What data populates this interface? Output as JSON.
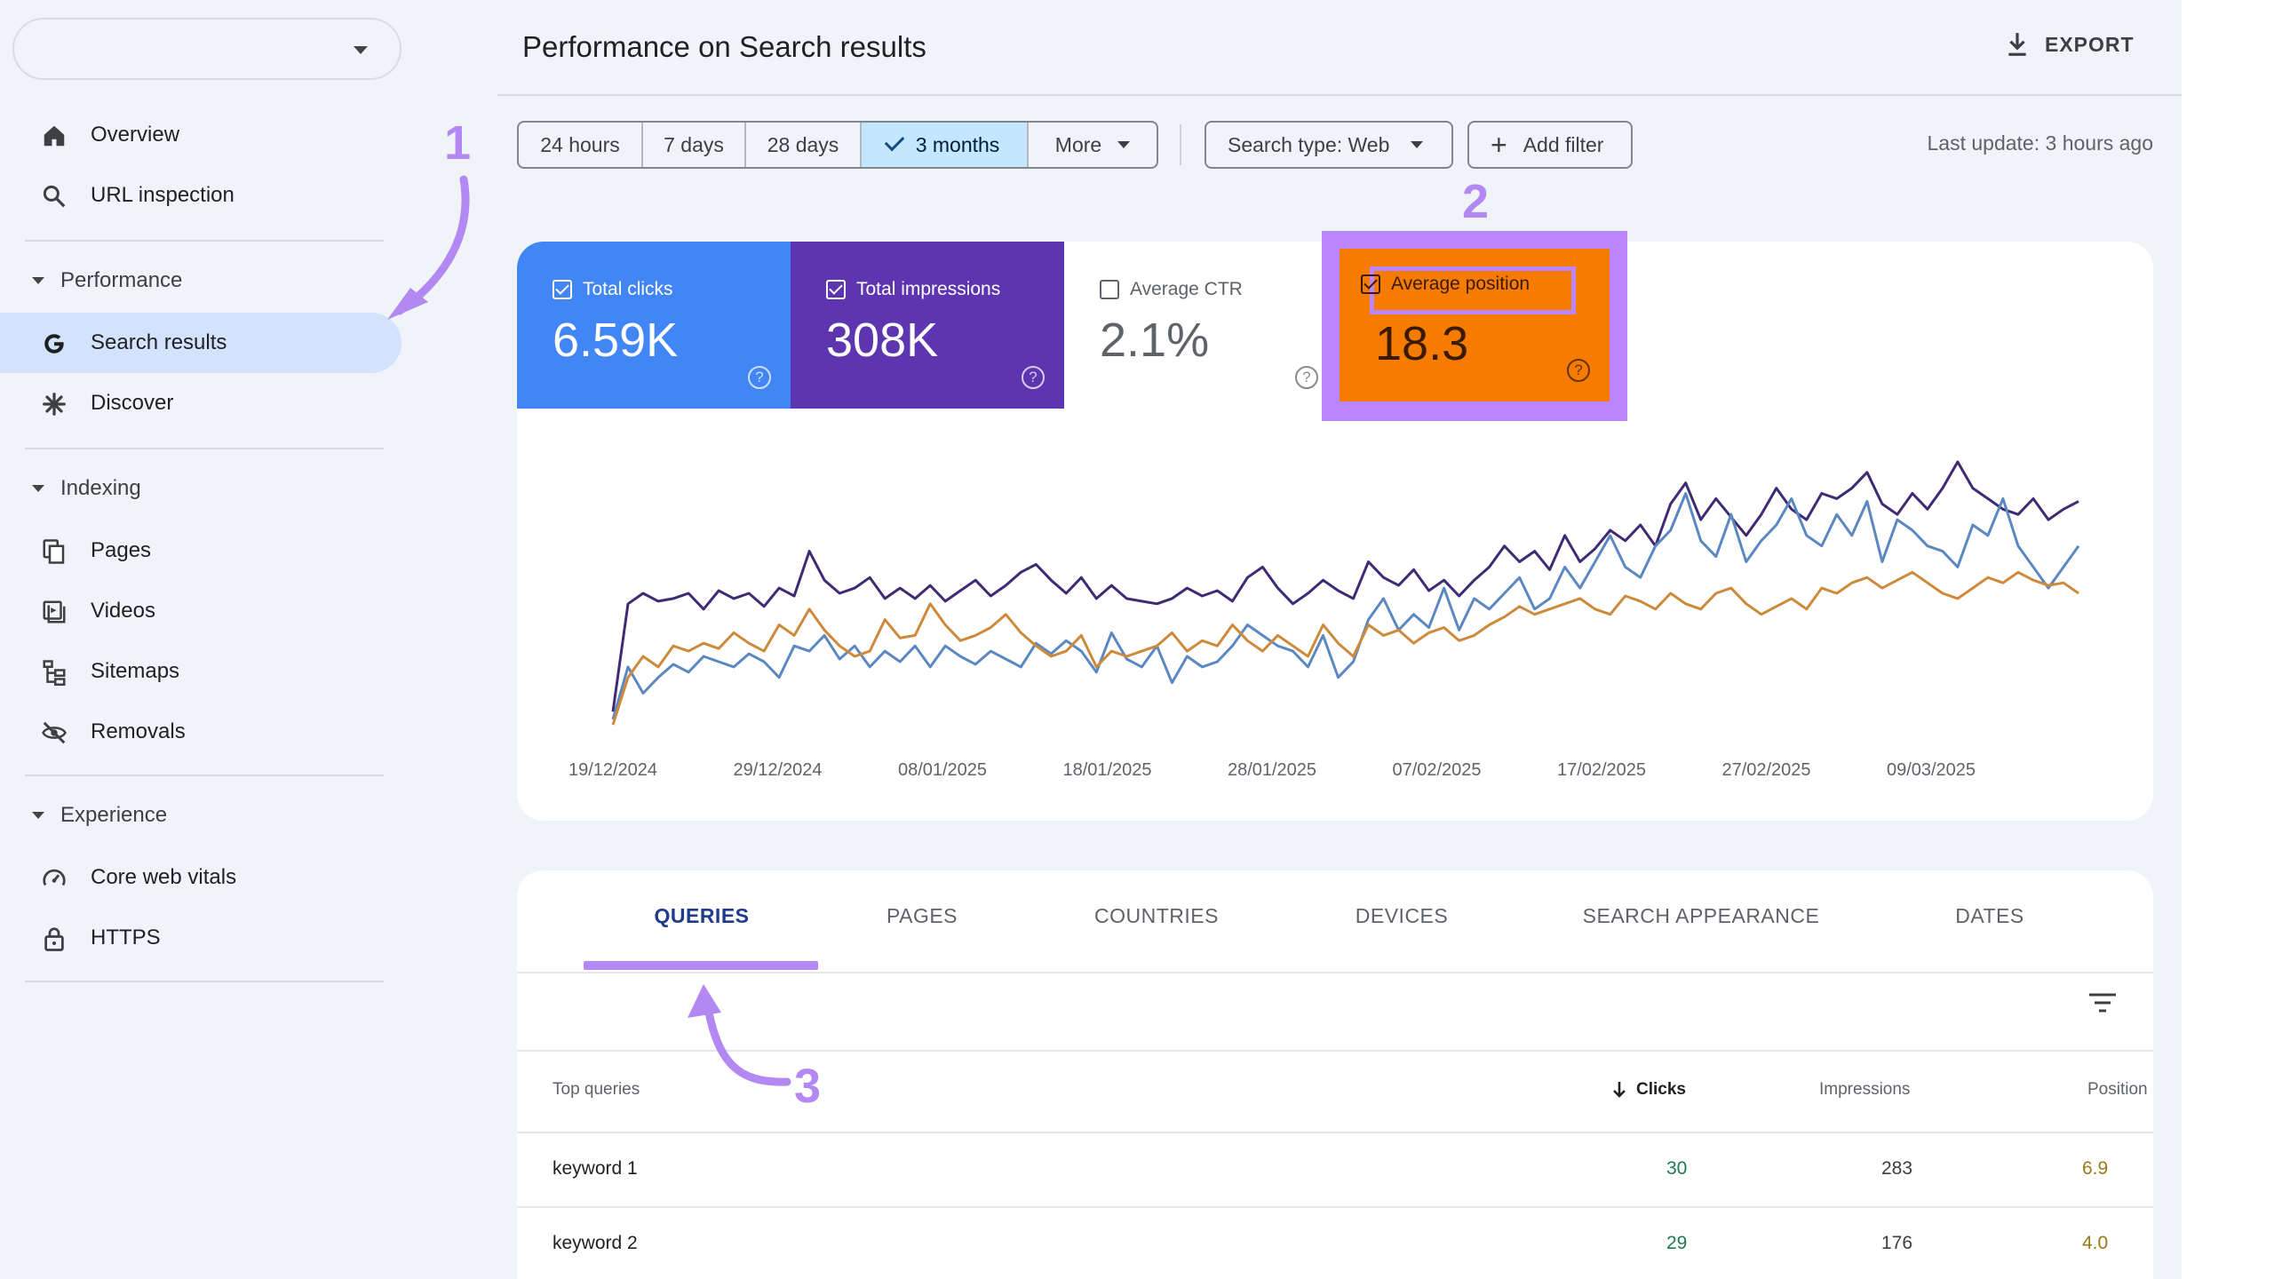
{
  "sidebar": {
    "items": [
      {
        "label": "Overview",
        "icon": "home-icon"
      },
      {
        "label": "URL inspection",
        "icon": "search-icon"
      },
      {
        "label": "Search results",
        "icon": "google-g-icon"
      },
      {
        "label": "Discover",
        "icon": "asterisk-icon"
      },
      {
        "label": "Pages",
        "icon": "pages-icon"
      },
      {
        "label": "Videos",
        "icon": "video-icon"
      },
      {
        "label": "Sitemaps",
        "icon": "sitemap-icon"
      },
      {
        "label": "Removals",
        "icon": "eye-off-icon"
      },
      {
        "label": "Core web vitals",
        "icon": "gauge-icon"
      },
      {
        "label": "HTTPS",
        "icon": "lock-icon"
      }
    ],
    "sections": {
      "performance": "Performance",
      "indexing": "Indexing",
      "experience": "Experience"
    },
    "active_item": "Search results"
  },
  "header": {
    "title": "Performance on Search results",
    "export_label": "EXPORT"
  },
  "filters": {
    "date_ranges": [
      "24 hours",
      "7 days",
      "28 days",
      "3 months",
      "More"
    ],
    "selected_range": "3 months",
    "search_type": "Search type: Web",
    "add_filter": "Add filter",
    "last_update": "Last update: 3 hours ago"
  },
  "metrics": {
    "clicks": {
      "label": "Total clicks",
      "value": "6.59K",
      "checked": true,
      "color": "#4285f4"
    },
    "impressions": {
      "label": "Total impressions",
      "value": "308K",
      "checked": true,
      "color": "#5e35b1"
    },
    "ctr": {
      "label": "Average CTR",
      "value": "2.1%",
      "checked": false
    },
    "position": {
      "label": "Average position",
      "value": "18.3",
      "checked": true,
      "color": "#f57c00"
    }
  },
  "annotations": [
    "1",
    "2",
    "3"
  ],
  "annotation_color": "#b388f2",
  "chart_data": {
    "type": "line",
    "x_tick_labels": [
      "19/12/2024",
      "29/12/2024",
      "08/01/2025",
      "18/01/2025",
      "28/01/2025",
      "07/02/2025",
      "17/02/2025",
      "27/02/2025",
      "09/03/2025"
    ],
    "series": [
      {
        "name": "Total impressions",
        "color": "#3f2a73",
        "values": [
          0.05,
          0.46,
          0.5,
          0.47,
          0.48,
          0.5,
          0.44,
          0.51,
          0.48,
          0.5,
          0.45,
          0.52,
          0.49,
          0.66,
          0.55,
          0.5,
          0.52,
          0.56,
          0.48,
          0.52,
          0.48,
          0.53,
          0.47,
          0.51,
          0.55,
          0.49,
          0.53,
          0.58,
          0.61,
          0.55,
          0.5,
          0.56,
          0.48,
          0.53,
          0.48,
          0.47,
          0.46,
          0.48,
          0.52,
          0.49,
          0.51,
          0.47,
          0.56,
          0.6,
          0.52,
          0.46,
          0.5,
          0.55,
          0.51,
          0.48,
          0.62,
          0.56,
          0.53,
          0.59,
          0.51,
          0.55,
          0.49,
          0.55,
          0.6,
          0.68,
          0.62,
          0.66,
          0.59,
          0.72,
          0.62,
          0.67,
          0.74,
          0.7,
          0.76,
          0.68,
          0.84,
          0.92,
          0.78,
          0.86,
          0.79,
          0.72,
          0.8,
          0.9,
          0.82,
          0.78,
          0.88,
          0.86,
          0.9,
          0.96,
          0.84,
          0.8,
          0.88,
          0.82,
          0.9,
          1.0,
          0.9,
          0.86,
          0.82,
          0.8,
          0.86,
          0.78,
          0.82,
          0.85
        ]
      },
      {
        "name": "Total clicks",
        "color": "#5c88c2",
        "values": [
          0.02,
          0.22,
          0.12,
          0.18,
          0.23,
          0.2,
          0.26,
          0.24,
          0.22,
          0.27,
          0.24,
          0.18,
          0.3,
          0.28,
          0.34,
          0.25,
          0.3,
          0.22,
          0.28,
          0.24,
          0.3,
          0.22,
          0.3,
          0.26,
          0.23,
          0.28,
          0.25,
          0.22,
          0.31,
          0.27,
          0.32,
          0.28,
          0.2,
          0.35,
          0.25,
          0.22,
          0.3,
          0.16,
          0.26,
          0.22,
          0.24,
          0.3,
          0.38,
          0.34,
          0.3,
          0.28,
          0.22,
          0.34,
          0.18,
          0.24,
          0.4,
          0.48,
          0.36,
          0.42,
          0.37,
          0.52,
          0.36,
          0.48,
          0.44,
          0.5,
          0.56,
          0.44,
          0.48,
          0.6,
          0.52,
          0.62,
          0.72,
          0.6,
          0.56,
          0.68,
          0.74,
          0.88,
          0.7,
          0.64,
          0.8,
          0.62,
          0.7,
          0.76,
          0.86,
          0.72,
          0.68,
          0.8,
          0.72,
          0.85,
          0.62,
          0.78,
          0.74,
          0.68,
          0.66,
          0.6,
          0.76,
          0.72,
          0.86,
          0.68,
          0.6,
          0.52,
          0.6,
          0.68
        ]
      },
      {
        "name": "Average position",
        "color": "#cc8a3a",
        "values": [
          0.0,
          0.18,
          0.26,
          0.22,
          0.3,
          0.28,
          0.31,
          0.29,
          0.35,
          0.31,
          0.28,
          0.38,
          0.34,
          0.44,
          0.36,
          0.3,
          0.26,
          0.28,
          0.4,
          0.33,
          0.34,
          0.46,
          0.38,
          0.32,
          0.34,
          0.37,
          0.42,
          0.35,
          0.3,
          0.26,
          0.28,
          0.34,
          0.22,
          0.28,
          0.26,
          0.28,
          0.3,
          0.35,
          0.28,
          0.32,
          0.3,
          0.38,
          0.32,
          0.28,
          0.34,
          0.3,
          0.26,
          0.38,
          0.31,
          0.26,
          0.38,
          0.34,
          0.36,
          0.31,
          0.35,
          0.37,
          0.32,
          0.34,
          0.38,
          0.41,
          0.45,
          0.42,
          0.44,
          0.46,
          0.48,
          0.44,
          0.42,
          0.49,
          0.47,
          0.44,
          0.5,
          0.46,
          0.44,
          0.5,
          0.52,
          0.46,
          0.42,
          0.45,
          0.48,
          0.44,
          0.52,
          0.5,
          0.54,
          0.56,
          0.52,
          0.55,
          0.58,
          0.54,
          0.5,
          0.48,
          0.52,
          0.56,
          0.54,
          0.58,
          0.55,
          0.53,
          0.54,
          0.5
        ]
      }
    ],
    "grid": false
  },
  "tabs": [
    "QUERIES",
    "PAGES",
    "COUNTRIES",
    "DEVICES",
    "SEARCH APPEARANCE",
    "DATES"
  ],
  "active_tab": "QUERIES",
  "table": {
    "columns": [
      "Top queries",
      "Clicks",
      "Impressions",
      "Position"
    ],
    "sort_column": "Clicks",
    "rows": [
      {
        "query": "keyword 1",
        "clicks": "30",
        "impressions": "283",
        "position": "6.9"
      },
      {
        "query": "keyword 2",
        "clicks": "29",
        "impressions": "176",
        "position": "4.0"
      }
    ]
  }
}
